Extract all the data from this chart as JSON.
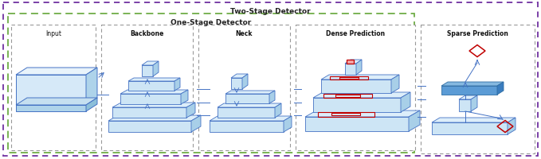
{
  "title_two_stage": "Two-Stage Detector",
  "title_one_stage": "One-Stage Detector",
  "section_labels": [
    "Input",
    "Backbone",
    "Neck",
    "Dense Prediction",
    "Sparse Prediction"
  ],
  "bg_color": "#ffffff",
  "light_blue": "#bdd7ee",
  "mid_blue": "#9dc3e6",
  "dark_blue": "#2e75b6",
  "top_face": "#deeaf1",
  "right_face": "#9dc3e6",
  "edge_blue": "#4472c4",
  "red_color": "#c00000",
  "arr_color": "#4472c4",
  "two_stage_color": "#7030a0",
  "one_stage_color": "#70ad47",
  "section_gray": "#808080",
  "figsize": [
    6.79,
    2.01
  ],
  "dpi": 100
}
